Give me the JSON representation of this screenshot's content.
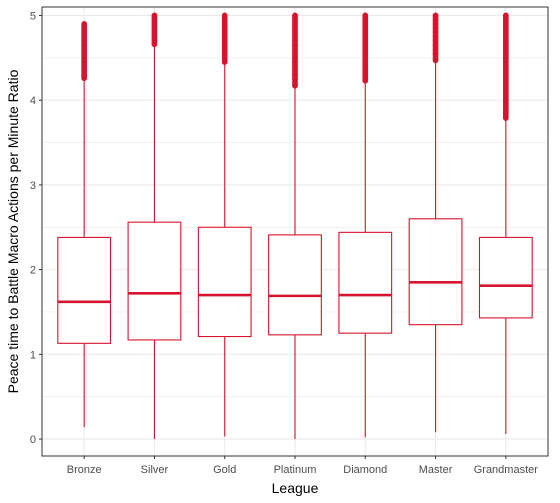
{
  "chart_data": {
    "type": "box",
    "title": "",
    "xlabel": "League",
    "ylabel": "Peace time to Battle Macro Actions per Minute Ratio",
    "ylim": [
      -0.2,
      5.1
    ],
    "yticks": [
      0,
      1,
      2,
      3,
      4,
      5
    ],
    "ytick_labels": [
      "0",
      "1",
      "2",
      "3",
      "4",
      "5"
    ],
    "grid": true,
    "legend": "none",
    "colors": {
      "box": "#d7142f",
      "outlier": "#d7142f",
      "grid": "#ebebeb",
      "panel_border": "#333333"
    },
    "categories": [
      "Bronze",
      "Silver",
      "Gold",
      "Platinum",
      "Diamond",
      "Master",
      "Grandmaster"
    ],
    "boxes": [
      {
        "q1": 1.13,
        "median": 1.62,
        "q3": 2.38,
        "whisker_low": 0.14,
        "whisker_high": 4.24,
        "outliers": [
          4.26,
          4.3,
          4.35,
          4.4,
          4.45,
          4.5,
          4.55,
          4.6,
          4.65,
          4.7,
          4.75,
          4.8,
          4.85,
          4.9
        ]
      },
      {
        "q1": 1.17,
        "median": 1.72,
        "q3": 2.56,
        "whisker_low": 0.0,
        "whisker_high": 4.64,
        "outliers": [
          4.66,
          4.7,
          4.75,
          4.8,
          4.85,
          4.9,
          4.95,
          5.0
        ]
      },
      {
        "q1": 1.21,
        "median": 1.7,
        "q3": 2.5,
        "whisker_low": 0.03,
        "whisker_high": 4.43,
        "outliers": [
          4.45,
          4.5,
          4.55,
          4.6,
          4.65,
          4.7,
          4.75,
          4.8,
          4.85,
          4.9,
          4.95,
          5.0
        ]
      },
      {
        "q1": 1.23,
        "median": 1.69,
        "q3": 2.41,
        "whisker_low": 0.0,
        "whisker_high": 4.15,
        "outliers": [
          4.17,
          4.25,
          4.3,
          4.35,
          4.4,
          4.45,
          4.5,
          4.55,
          4.6,
          4.65,
          4.7,
          4.75,
          4.8,
          4.85,
          4.9,
          4.95,
          5.0
        ]
      },
      {
        "q1": 1.25,
        "median": 1.7,
        "q3": 2.44,
        "whisker_low": 0.02,
        "whisker_high": 4.21,
        "outliers": [
          4.23,
          4.3,
          4.35,
          4.4,
          4.45,
          4.5,
          4.55,
          4.6,
          4.65,
          4.7,
          4.75,
          4.8,
          4.85,
          4.9,
          4.95,
          5.0
        ]
      },
      {
        "q1": 1.35,
        "median": 1.85,
        "q3": 2.6,
        "whisker_low": 0.08,
        "whisker_high": 4.45,
        "outliers": [
          4.47,
          4.55,
          4.6,
          4.65,
          4.7,
          4.75,
          4.8,
          4.85,
          4.9,
          4.95,
          5.0
        ]
      },
      {
        "q1": 1.43,
        "median": 1.81,
        "q3": 2.38,
        "whisker_low": 0.06,
        "whisker_high": 3.77,
        "outliers": [
          3.79,
          3.85,
          3.9,
          3.95,
          4.0,
          4.05,
          4.1,
          4.15,
          4.2,
          4.25,
          4.3,
          4.35,
          4.4,
          4.45,
          4.5,
          4.55,
          4.6,
          4.65,
          4.7,
          4.75,
          4.8,
          4.85,
          4.9,
          4.95,
          5.0
        ]
      }
    ]
  }
}
